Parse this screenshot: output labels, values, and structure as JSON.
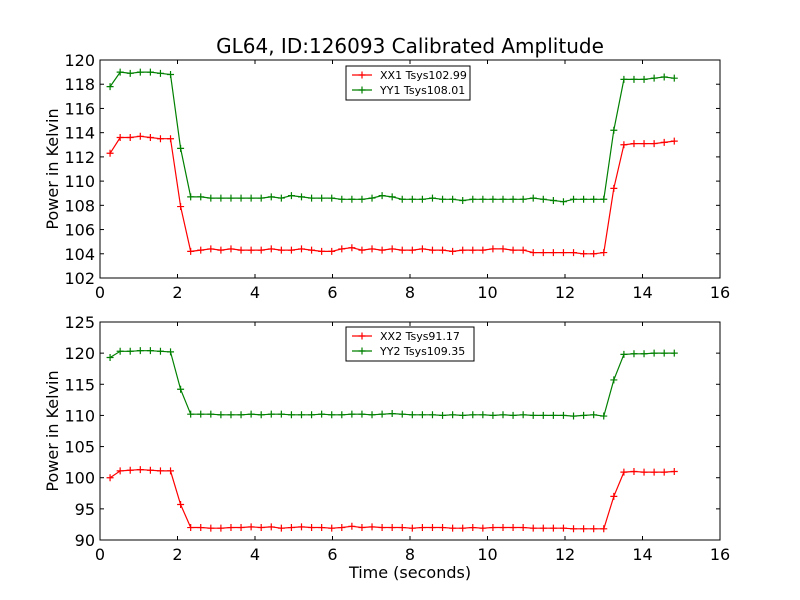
{
  "title": "GL64, ID:126093 Calibrated Amplitude",
  "chart_data": [
    {
      "type": "line",
      "id": "top",
      "xlabel": "",
      "ylabel": "Power in Kelvin",
      "xlim": [
        0,
        16
      ],
      "ylim": [
        102,
        120
      ],
      "xticks": [
        0,
        2,
        4,
        6,
        8,
        10,
        12,
        14,
        16
      ],
      "yticks": [
        102,
        104,
        106,
        108,
        110,
        112,
        114,
        116,
        118,
        120
      ],
      "legend_position": "top-center",
      "x": [
        0.26,
        0.52,
        0.78,
        1.04,
        1.3,
        1.56,
        1.82,
        2.08,
        2.34,
        2.6,
        2.86,
        3.12,
        3.38,
        3.64,
        3.9,
        4.16,
        4.42,
        4.68,
        4.94,
        5.2,
        5.46,
        5.72,
        5.98,
        6.24,
        6.5,
        6.76,
        7.02,
        7.28,
        7.54,
        7.8,
        8.06,
        8.32,
        8.58,
        8.84,
        9.1,
        9.36,
        9.62,
        9.88,
        10.14,
        10.4,
        10.66,
        10.92,
        11.18,
        11.44,
        11.7,
        11.96,
        12.22,
        12.48,
        12.74,
        13.0,
        13.26,
        13.52,
        13.78,
        14.04,
        14.3,
        14.56,
        14.82
      ],
      "series": [
        {
          "name": "XX1 Tsys102.99",
          "color": "#ff0000",
          "values": [
            112.3,
            113.6,
            113.6,
            113.7,
            113.6,
            113.5,
            113.5,
            107.9,
            104.2,
            104.3,
            104.4,
            104.3,
            104.4,
            104.3,
            104.3,
            104.3,
            104.4,
            104.3,
            104.3,
            104.4,
            104.3,
            104.2,
            104.2,
            104.4,
            104.5,
            104.3,
            104.4,
            104.3,
            104.4,
            104.3,
            104.3,
            104.4,
            104.3,
            104.3,
            104.2,
            104.3,
            104.3,
            104.3,
            104.4,
            104.4,
            104.3,
            104.3,
            104.1,
            104.1,
            104.1,
            104.1,
            104.1,
            104.0,
            104.0,
            104.1,
            109.4,
            113.0,
            113.1,
            113.1,
            113.1,
            113.2,
            113.3
          ]
        },
        {
          "name": "YY1 Tsys108.01",
          "color": "#008000",
          "values": [
            117.8,
            119.0,
            118.9,
            119.0,
            119.0,
            118.9,
            118.8,
            112.7,
            108.7,
            108.7,
            108.6,
            108.6,
            108.6,
            108.6,
            108.6,
            108.6,
            108.7,
            108.6,
            108.8,
            108.7,
            108.6,
            108.6,
            108.6,
            108.5,
            108.5,
            108.5,
            108.6,
            108.8,
            108.7,
            108.5,
            108.5,
            108.5,
            108.6,
            108.5,
            108.5,
            108.4,
            108.5,
            108.5,
            108.5,
            108.5,
            108.5,
            108.5,
            108.6,
            108.5,
            108.4,
            108.3,
            108.5,
            108.5,
            108.5,
            108.5,
            114.2,
            118.4,
            118.4,
            118.4,
            118.5,
            118.6,
            118.5
          ]
        }
      ]
    },
    {
      "type": "line",
      "id": "bottom",
      "xlabel": "Time (seconds)",
      "ylabel": "Power in Kelvin",
      "xlim": [
        0,
        16
      ],
      "ylim": [
        90,
        125
      ],
      "xticks": [
        0,
        2,
        4,
        6,
        8,
        10,
        12,
        14,
        16
      ],
      "yticks": [
        90,
        95,
        100,
        105,
        110,
        115,
        120,
        125
      ],
      "legend_position": "top-center",
      "x": [
        0.26,
        0.52,
        0.78,
        1.04,
        1.3,
        1.56,
        1.82,
        2.08,
        2.34,
        2.6,
        2.86,
        3.12,
        3.38,
        3.64,
        3.9,
        4.16,
        4.42,
        4.68,
        4.94,
        5.2,
        5.46,
        5.72,
        5.98,
        6.24,
        6.5,
        6.76,
        7.02,
        7.28,
        7.54,
        7.8,
        8.06,
        8.32,
        8.58,
        8.84,
        9.1,
        9.36,
        9.62,
        9.88,
        10.14,
        10.4,
        10.66,
        10.92,
        11.18,
        11.44,
        11.7,
        11.96,
        12.22,
        12.48,
        12.74,
        13.0,
        13.26,
        13.52,
        13.78,
        14.04,
        14.3,
        14.56,
        14.82
      ],
      "series": [
        {
          "name": "XX2 Tsys91.17",
          "color": "#ff0000",
          "values": [
            100.0,
            101.1,
            101.2,
            101.3,
            101.2,
            101.1,
            101.1,
            95.7,
            92.0,
            92.0,
            91.9,
            91.9,
            92.0,
            92.0,
            92.1,
            92.0,
            92.1,
            91.9,
            92.0,
            92.1,
            92.0,
            92.0,
            91.9,
            92.0,
            92.2,
            92.0,
            92.1,
            92.0,
            92.0,
            92.0,
            91.9,
            92.0,
            92.0,
            92.0,
            91.9,
            91.9,
            92.0,
            91.9,
            92.0,
            92.0,
            92.0,
            92.0,
            91.9,
            91.9,
            91.9,
            91.9,
            91.8,
            91.8,
            91.8,
            91.8,
            97.0,
            100.9,
            101.0,
            100.9,
            100.9,
            100.9,
            101.0
          ]
        },
        {
          "name": "YY2 Tsys109.35",
          "color": "#008000",
          "values": [
            119.3,
            120.3,
            120.3,
            120.4,
            120.4,
            120.3,
            120.2,
            114.2,
            110.2,
            110.2,
            110.2,
            110.1,
            110.1,
            110.1,
            110.2,
            110.1,
            110.2,
            110.2,
            110.1,
            110.1,
            110.1,
            110.2,
            110.1,
            110.1,
            110.2,
            110.2,
            110.1,
            110.2,
            110.3,
            110.2,
            110.1,
            110.1,
            110.1,
            110.0,
            110.1,
            110.0,
            110.1,
            110.1,
            110.0,
            110.1,
            110.0,
            110.1,
            110.0,
            110.0,
            110.0,
            110.0,
            109.9,
            110.0,
            110.1,
            109.9,
            115.7,
            119.8,
            119.9,
            119.9,
            120.0,
            120.0,
            120.0
          ]
        }
      ]
    }
  ]
}
